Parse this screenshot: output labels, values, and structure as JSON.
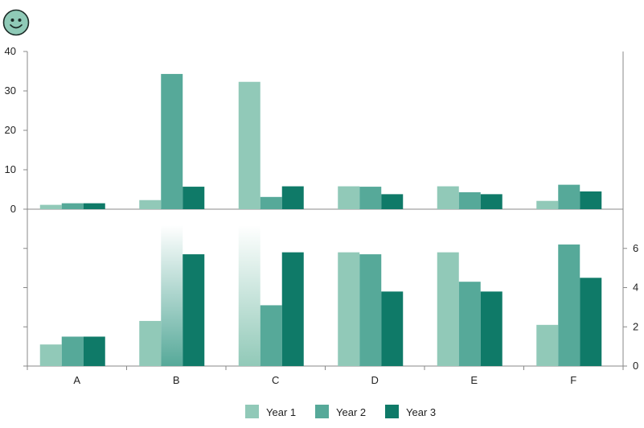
{
  "logo": {
    "icon": "smiley-face-icon",
    "fill": "#8fcab7",
    "stroke": "#1c2b27"
  },
  "chart_data": {
    "type": "bar",
    "categories": [
      "A",
      "B",
      "C",
      "D",
      "E",
      "F"
    ],
    "series": [
      {
        "name": "Year 1",
        "color": "#91c9b8",
        "values": [
          1.1,
          2.3,
          32.3,
          5.8,
          5.8,
          2.1
        ]
      },
      {
        "name": "Year 2",
        "color": "#56a999",
        "values": [
          1.5,
          34.3,
          3.1,
          5.7,
          4.3,
          6.2
        ]
      },
      {
        "name": "Year 3",
        "color": "#0f7a68",
        "values": [
          1.5,
          5.7,
          5.8,
          3.8,
          3.8,
          4.5
        ]
      }
    ],
    "panels": [
      {
        "ylim": [
          0,
          40
        ],
        "yticks": [
          "0",
          "10",
          "20",
          "30",
          "40"
        ],
        "axis": "left"
      },
      {
        "ylim": [
          0,
          8
        ],
        "yticks": [
          "0",
          "2",
          "4",
          "6"
        ],
        "axis": "right"
      }
    ],
    "legend": {
      "position": "bottom-center"
    },
    "grid": false
  }
}
